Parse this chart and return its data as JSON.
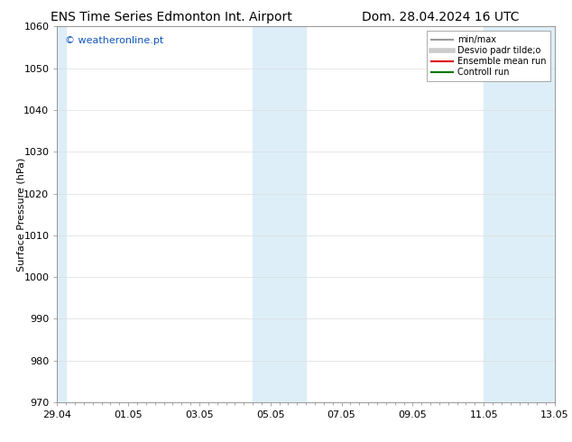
{
  "title_left": "ENS Time Series Edmonton Int. Airport",
  "title_right": "Dom. 28.04.2024 16 UTC",
  "ylabel": "Surface Pressure (hPa)",
  "ylim": [
    970,
    1060
  ],
  "yticks": [
    970,
    980,
    990,
    1000,
    1010,
    1020,
    1030,
    1040,
    1050,
    1060
  ],
  "xtick_labels": [
    "29.04",
    "01.05",
    "03.05",
    "05.05",
    "07.05",
    "09.05",
    "11.05",
    "13.05"
  ],
  "xtick_positions": [
    0,
    2,
    4,
    6,
    8,
    10,
    12,
    14
  ],
  "x_total": 14,
  "shaded_bands": [
    {
      "x_start": 0.0,
      "x_end": 0.25,
      "color": "#ddeef8"
    },
    {
      "x_start": 5.5,
      "x_end": 7.0,
      "color": "#ddeef8"
    },
    {
      "x_start": 12.0,
      "x_end": 14.0,
      "color": "#ddeef8"
    }
  ],
  "watermark": "© weatheronline.pt",
  "watermark_color": "#1155bb",
  "legend_entries": [
    {
      "label": "min/max",
      "color": "#999999",
      "linestyle": "-",
      "lw": 1.5
    },
    {
      "label": "Desvio padr tilde;o",
      "color": "#cccccc",
      "linestyle": "-",
      "lw": 4
    },
    {
      "label": "Ensemble mean run",
      "color": "#dd0000",
      "linestyle": "-",
      "lw": 1.5
    },
    {
      "label": "Controll run",
      "color": "#007700",
      "linestyle": "-",
      "lw": 1.5
    }
  ],
  "bg_color": "#ffffff",
  "plot_bg_color": "#ffffff",
  "grid_color": "#dddddd",
  "spine_color": "#888888",
  "title_fontsize": 10,
  "ylabel_fontsize": 8,
  "tick_fontsize": 8,
  "watermark_fontsize": 8,
  "legend_fontsize": 7
}
